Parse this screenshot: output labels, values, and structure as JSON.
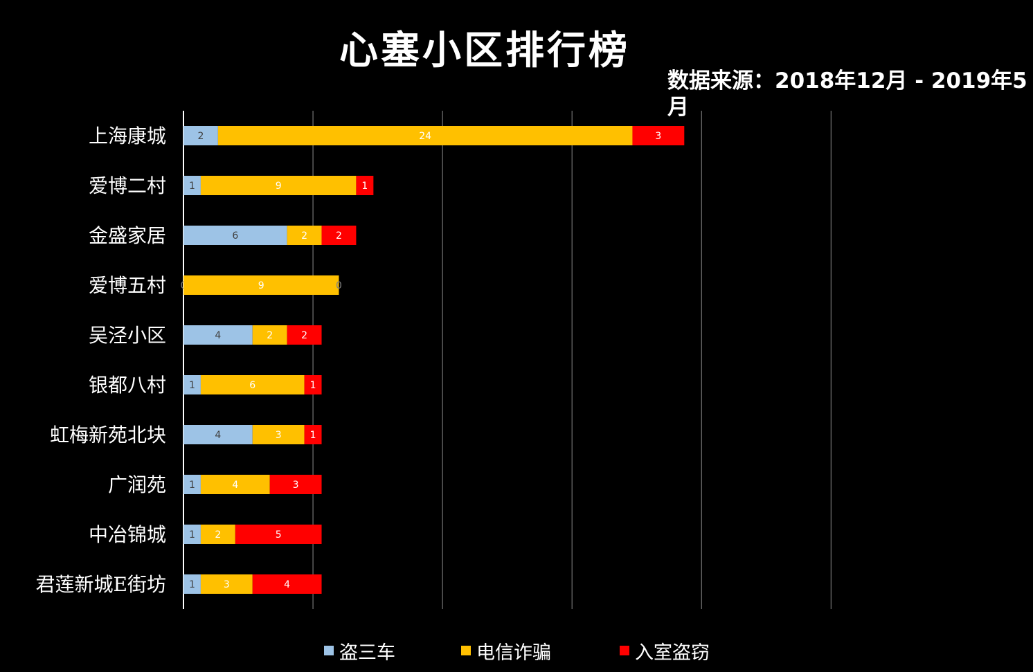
{
  "chart_data": {
    "type": "bar",
    "orientation": "horizontal",
    "stacked": true,
    "title": "心塞小区排行榜",
    "subtitle": "数据来源：2018年12月 - 2019年5月",
    "categories": [
      "上海康城",
      "爱博二村",
      "金盛家居",
      "爱博五村",
      "吴泾小区",
      "银都八村",
      "虹梅新苑北块",
      "广润苑",
      "中冶锦城",
      "君莲新城E街坊"
    ],
    "series": [
      {
        "name": "盗三车",
        "color": "#9DC3E6",
        "label_color": "#404040",
        "values": [
          2,
          1,
          6,
          0,
          4,
          1,
          4,
          1,
          1,
          1
        ]
      },
      {
        "name": "电信诈骗",
        "color": "#FFC000",
        "label_color": "#ffffff",
        "values": [
          24,
          9,
          2,
          9,
          2,
          6,
          3,
          4,
          2,
          3
        ]
      },
      {
        "name": "入室盗窃",
        "color": "#FF0000",
        "label_color": "#ffffff",
        "values": [
          3,
          1,
          2,
          0,
          2,
          1,
          1,
          3,
          5,
          4
        ]
      }
    ],
    "xlim": [
      0,
      42.5
    ],
    "x_gridlines": [
      0,
      7.5,
      15,
      22.5,
      30,
      37.5
    ],
    "grid": true,
    "legend_position": "bottom"
  }
}
